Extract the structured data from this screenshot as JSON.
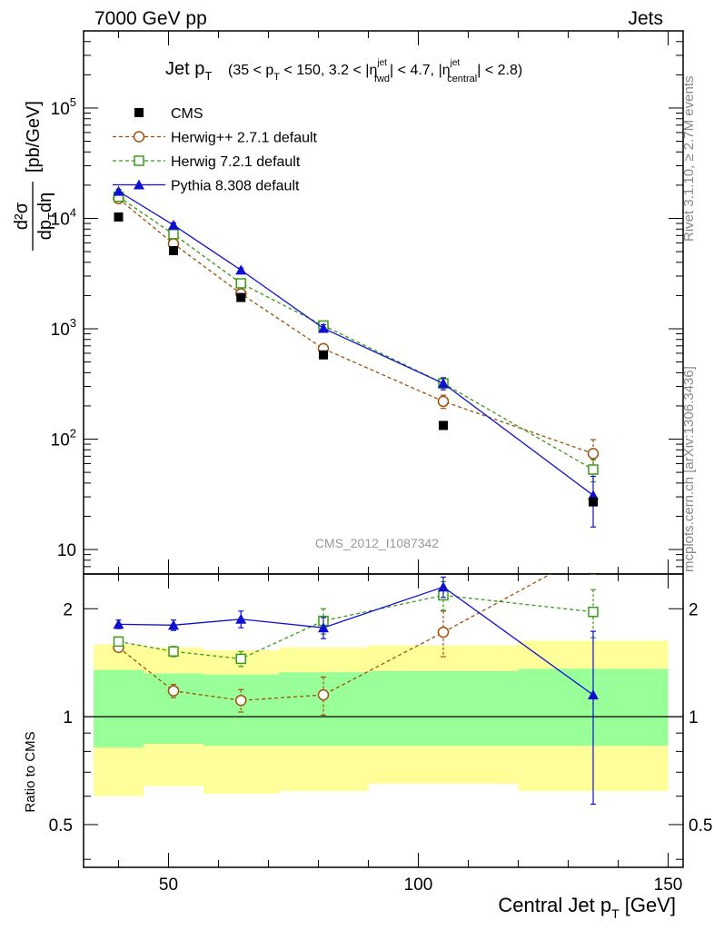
{
  "header": {
    "left": "7000 GeV pp",
    "right": "Jets"
  },
  "side_labels": {
    "rivet": "Rivet 3.1.10, ≥ 2.7M events",
    "mcplots": "mcplots.cern.ch [arXiv:1306.3436]"
  },
  "watermark": "CMS_2012_I1087342",
  "plot_title": {
    "main": "Jet p",
    "main_sub": "T",
    "r1": "(35 < p",
    "r1s": "T",
    "r2": " < 150, 3.2 < |η",
    "r2sup": "jet",
    "r2sub": "fwd",
    "r3": "| < 4.7, |η",
    "r3sup": "jet",
    "r3sub": "central",
    "r4": "| < 2.8)"
  },
  "ylabel_top": {
    "num": "d²σ",
    "den": "dp",
    "den_sub": "T",
    "den_end": "dη",
    "units": "[pb/GeV]"
  },
  "ylabel_bottom": "Ratio to CMS",
  "xlabel": {
    "main": "Central Jet p",
    "sub": "T",
    "end": " [GeV]"
  },
  "colors": {
    "cms": "#000000",
    "herwigpp": "#a0500a",
    "herwig7": "#3a9a1a",
    "pythia": "#1010d0",
    "band_inner": "#99ff99",
    "band_outer": "#ffff99"
  },
  "chart_data": [
    {
      "type": "line",
      "title": "Jet pT (35 < pT < 150, 3.2 < |ηjet fwd| < 4.7, |ηjet central| < 2.8)",
      "xlabel": "Central Jet pT [GeV]",
      "ylabel": "d²σ/dpTdη [pb/GeV]",
      "y_scale": "log",
      "xlim": [
        33,
        153
      ],
      "ylim": [
        6,
        500000
      ],
      "x_ticks": [
        "50",
        "100",
        "150"
      ],
      "y_ticks": [
        "10",
        "10²",
        "10³",
        "10⁴",
        "10⁵"
      ],
      "y_tick_values": [
        10,
        100,
        1000,
        10000,
        100000
      ],
      "legend_position": "top-left",
      "series": [
        {
          "name": "CMS",
          "style": "square-marker",
          "x": [
            40,
            51,
            64.5,
            81,
            105,
            135
          ],
          "y": [
            10300,
            5100,
            1920,
            580,
            133,
            27
          ],
          "yerr": [
            0,
            0,
            0,
            0,
            0,
            0
          ]
        },
        {
          "name": "Herwig++ 2.7.1 default",
          "style": "open-circle-dashed",
          "x": [
            40,
            51,
            64.5,
            81,
            105,
            135
          ],
          "y": [
            15100,
            5900,
            2080,
            660,
            220,
            74
          ],
          "yerr": [
            700,
            300,
            150,
            60,
            30,
            25
          ]
        },
        {
          "name": "Herwig 7.2.1 default",
          "style": "open-square-dashed",
          "x": [
            40,
            51,
            64.5,
            81,
            105,
            135
          ],
          "y": [
            15700,
            7200,
            2580,
            1070,
            320,
            53
          ],
          "yerr": [
            700,
            300,
            150,
            60,
            30,
            12
          ]
        },
        {
          "name": "Pythia 8.308 default",
          "style": "filled-triangle-solid",
          "x": [
            40,
            51,
            64.5,
            81,
            105,
            135
          ],
          "y": [
            17600,
            8700,
            3400,
            1010,
            320,
            31
          ],
          "yerr": [
            700,
            400,
            150,
            80,
            40,
            15
          ]
        }
      ]
    },
    {
      "type": "line",
      "title": "",
      "xlabel": "Central Jet pT [GeV]",
      "ylabel": "Ratio to CMS",
      "y_scale": "log",
      "xlim": [
        33,
        153
      ],
      "ylim": [
        0.38,
        2.5
      ],
      "x_ticks": [
        "50",
        "100",
        "150"
      ],
      "y_ticks": [
        "0.5",
        "1",
        "2"
      ],
      "y_tick_values": [
        0.5,
        1,
        2
      ],
      "reference_line": 1,
      "bands": {
        "x_edges": [
          35,
          45,
          57,
          72,
          90,
          120,
          150
        ],
        "inner_lo": [
          0.82,
          0.84,
          0.83,
          0.83,
          0.83,
          0.83
        ],
        "inner_hi": [
          1.35,
          1.32,
          1.31,
          1.33,
          1.34,
          1.36
        ],
        "outer_lo": [
          0.6,
          0.64,
          0.61,
          0.62,
          0.65,
          0.62
        ],
        "outer_hi": [
          1.59,
          1.56,
          1.53,
          1.56,
          1.58,
          1.63
        ]
      },
      "series": [
        {
          "name": "Herwig++ 2.7.1 default",
          "x": [
            40,
            51,
            64.5,
            81,
            105,
            135
          ],
          "y": [
            1.56,
            1.18,
            1.11,
            1.15,
            1.72,
            2.9
          ],
          "yerr": [
            0.04,
            0.05,
            0.08,
            0.14,
            0.25,
            0.4
          ]
        },
        {
          "name": "Herwig 7.2.1 default",
          "x": [
            40,
            51,
            64.5,
            81,
            105,
            135
          ],
          "y": [
            1.62,
            1.52,
            1.45,
            1.85,
            2.18,
            1.96
          ],
          "yerr": [
            0.04,
            0.05,
            0.07,
            0.15,
            0.2,
            0.3
          ]
        },
        {
          "name": "Pythia 8.308 default",
          "x": [
            40,
            51,
            64.5,
            81,
            105,
            135
          ],
          "y": [
            1.81,
            1.8,
            1.87,
            1.77,
            2.3,
            1.15
          ],
          "yerr": [
            0.05,
            0.06,
            0.1,
            0.12,
            0.15,
            0.58
          ]
        }
      ]
    }
  ]
}
